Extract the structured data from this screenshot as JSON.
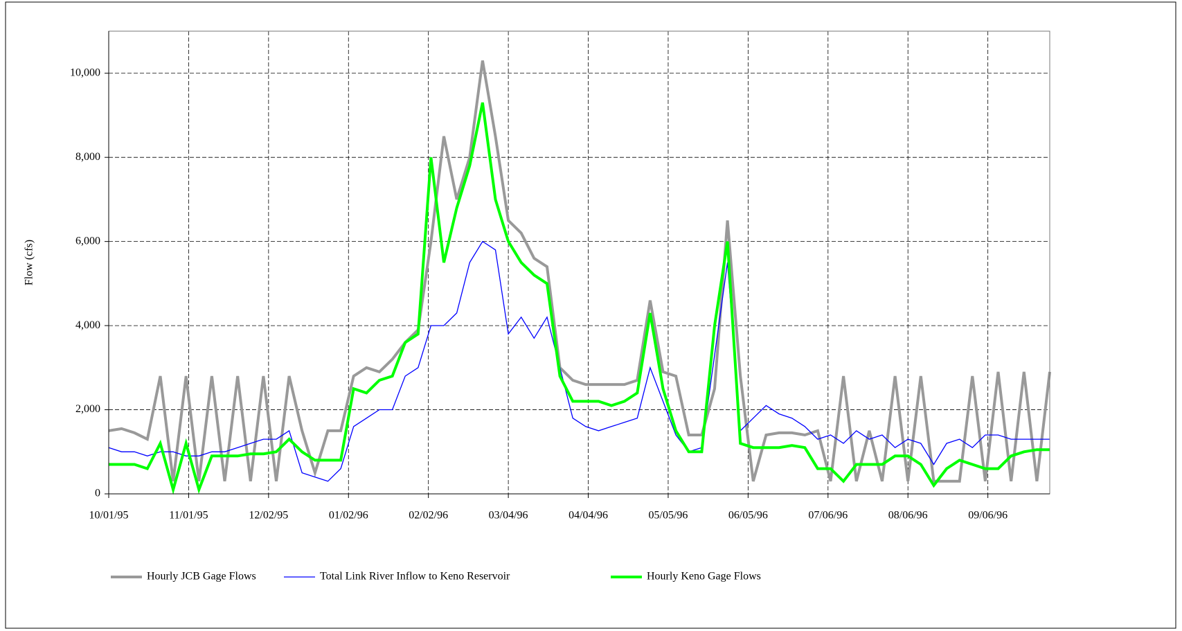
{
  "chart_data": {
    "type": "line",
    "axis_label_y": "Flow (cfs)",
    "x": [
      "10/01/95",
      "10/06/95",
      "10/11/95",
      "10/16/95",
      "10/21/95",
      "10/26/95",
      "10/31/95",
      "11/05/95",
      "11/10/95",
      "11/15/95",
      "11/20/95",
      "11/25/95",
      "11/30/95",
      "12/05/95",
      "12/10/95",
      "12/15/95",
      "12/20/95",
      "12/25/95",
      "12/30/95",
      "01/04/96",
      "01/09/96",
      "01/14/96",
      "01/19/96",
      "01/24/96",
      "01/29/96",
      "02/03/96",
      "02/08/96",
      "02/13/96",
      "02/18/96",
      "02/23/96",
      "02/28/96",
      "03/04/96",
      "03/09/96",
      "03/14/96",
      "03/19/96",
      "03/24/96",
      "03/29/96",
      "04/03/96",
      "04/08/96",
      "04/13/96",
      "04/18/96",
      "04/23/96",
      "04/28/96",
      "05/03/96",
      "05/08/96",
      "05/13/96",
      "05/18/96",
      "05/23/96",
      "05/28/96",
      "06/02/96",
      "06/07/96",
      "06/12/96",
      "06/17/96",
      "06/22/96",
      "06/27/96",
      "07/02/96",
      "07/07/96",
      "07/12/96",
      "07/17/96",
      "07/22/96",
      "07/27/96",
      "08/01/96",
      "08/06/96",
      "08/11/96",
      "08/16/96",
      "08/21/96",
      "08/26/96",
      "08/31/96",
      "09/05/96",
      "09/10/96",
      "09/15/96",
      "09/20/96",
      "09/25/96",
      "09/30/96"
    ],
    "series": [
      {
        "name": "Hourly JCB Gage Flows",
        "color": "#999999",
        "width": 4,
        "values": [
          1500,
          1550,
          1450,
          1300,
          2800,
          300,
          2800,
          300,
          2800,
          300,
          2800,
          300,
          2800,
          300,
          2800,
          1500,
          500,
          1500,
          1500,
          2800,
          3000,
          2900,
          3200,
          3600,
          3900,
          6000,
          8500,
          7000,
          8000,
          10300,
          8500,
          6500,
          6200,
          5600,
          5400,
          3000,
          2700,
          2600,
          2600,
          2600,
          2600,
          2700,
          4600,
          2900,
          2800,
          1400,
          1400,
          2500,
          6500,
          2800,
          300,
          1400,
          1450,
          1450,
          1400,
          1500,
          300,
          2800,
          300,
          1500,
          300,
          2800,
          300,
          2800,
          300,
          300,
          300,
          2800,
          300,
          2900,
          300,
          2900,
          300,
          2900
        ]
      },
      {
        "name": "Total Link River Inflow to Keno Reservoir",
        "color": "#0000ff",
        "width": 1.3,
        "values": [
          1100,
          1000,
          1000,
          900,
          1000,
          1000,
          900,
          900,
          1000,
          1000,
          1100,
          1200,
          1300,
          1300,
          1500,
          500,
          400,
          300,
          600,
          1600,
          1800,
          2000,
          2000,
          2800,
          3000,
          4000,
          4000,
          4300,
          5500,
          6000,
          5800,
          3800,
          4200,
          3700,
          4200,
          3000,
          1800,
          1600,
          1500,
          1600,
          1700,
          1800,
          3000,
          2200,
          1400,
          1000,
          1100,
          3300,
          5500,
          1500,
          1800,
          2100,
          1900,
          1800,
          1600,
          1300,
          1400,
          1200,
          1500,
          1300,
          1400,
          1100,
          1300,
          1200,
          700,
          1200,
          1300,
          1100,
          1400,
          1400,
          1300,
          1300,
          1300,
          1300
        ]
      },
      {
        "name": "Hourly Keno Gage Flows",
        "color": "#00ff00",
        "width": 4,
        "values": [
          700,
          700,
          700,
          600,
          1200,
          100,
          1200,
          100,
          900,
          900,
          900,
          950,
          950,
          1000,
          1300,
          1000,
          800,
          800,
          800,
          2500,
          2400,
          2700,
          2800,
          3600,
          3800,
          8000,
          5500,
          6800,
          7800,
          9300,
          7000,
          6000,
          5500,
          5200,
          5000,
          2800,
          2200,
          2200,
          2200,
          2100,
          2200,
          2400,
          4300,
          2500,
          1500,
          1000,
          1000,
          4000,
          6000,
          1200,
          1100,
          1100,
          1100,
          1150,
          1100,
          600,
          600,
          300,
          700,
          700,
          700,
          900,
          900,
          700,
          200,
          600,
          800,
          700,
          600,
          600,
          900,
          1000,
          1050,
          1050
        ]
      }
    ],
    "xlim": [
      "10/01/95",
      "09/30/96"
    ],
    "xticks": [
      "10/01/95",
      "11/01/95",
      "12/02/95",
      "01/02/96",
      "02/02/96",
      "03/04/96",
      "04/04/96",
      "05/05/96",
      "06/05/96",
      "07/06/96",
      "08/06/96",
      "09/06/96"
    ],
    "ylim": [
      0,
      11000
    ],
    "yticks": [
      0,
      {
        "value": 2000,
        "label": "2,000"
      },
      {
        "value": 4000,
        "label": "4,000"
      },
      {
        "value": 6000,
        "label": "6,000"
      },
      {
        "value": 8000,
        "label": "8,000"
      },
      {
        "value": 10000,
        "label": "10,000"
      }
    ],
    "grid": true,
    "legend": "bottom"
  }
}
